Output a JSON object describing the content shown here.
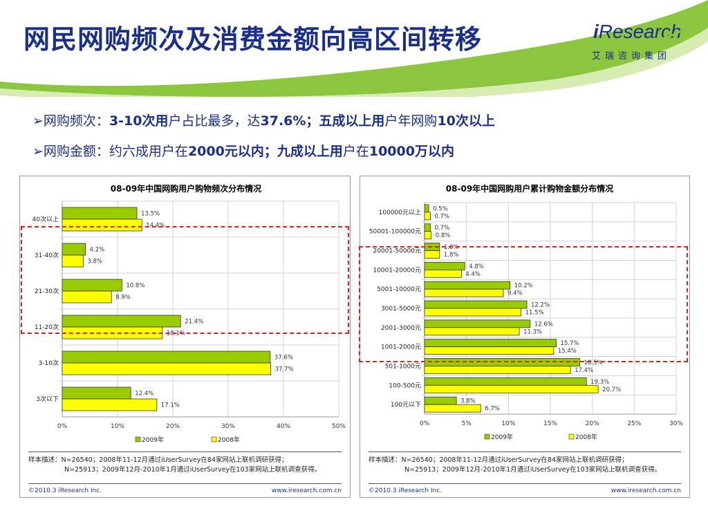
{
  "title": "网民网购频次及消费金额向高区间转移",
  "logo": {
    "brand_i": "i",
    "brand_rest": "Research",
    "cn": "艾瑞咨询集团"
  },
  "bullets": [
    {
      "a": "网购频次：",
      "b": "3-10次用",
      "c": "户占比最多，达",
      "d": "37.6%；五成以上用",
      "e": "户年网购",
      "f": "10次以上"
    },
    {
      "a": "网购金额：约六成用户在",
      "b": "2000元以内；九成以上用",
      "c": "户在",
      "d": "10000万以内"
    }
  ],
  "colors": {
    "series2009": "#99cc00",
    "series2008": "#ffff00",
    "title_blue": "#1a2f8c",
    "highlight": "#e02020"
  },
  "chart_data": [
    {
      "type": "bar",
      "orientation": "horizontal",
      "title": "08-09年中国网购用户购物频次分布情况",
      "categories": [
        "40次以上",
        "31-40次",
        "21-30次",
        "11-20次",
        "3-10次",
        "3次以下"
      ],
      "series": [
        {
          "name": "2009年",
          "values": [
            13.5,
            4.2,
            10.8,
            21.4,
            37.6,
            12.4
          ],
          "labels": [
            "13.5%",
            "4.2%",
            "10.8%",
            "21.4%",
            "37.6%",
            "12.4%"
          ]
        },
        {
          "name": "2008年",
          "values": [
            14.4,
            3.8,
            8.9,
            18.1,
            37.7,
            17.1
          ],
          "labels": [
            "14.4%",
            "3.8%",
            "8.9%",
            "18.1%",
            "37.7%",
            "17.1%"
          ]
        }
      ],
      "xlim": [
        0,
        50
      ],
      "ticks": [
        0,
        10,
        20,
        30,
        40,
        50
      ],
      "tick_labels": [
        "0%",
        "10%",
        "20%",
        "30%",
        "40%",
        "50%"
      ],
      "grid": true,
      "legend": "bottom",
      "note_lines": [
        "样本描述：N=26540；2008年11-12月通过iUserSurvey在84家网站上联机调研获得；",
        "N=25913；2009年12月-2010年1月通过iUserSurvey在103家网站上联机调查获得。"
      ],
      "copyright": "©2010.3 iResearch Inc.",
      "website": "www.iresearch.com.cn"
    },
    {
      "type": "bar",
      "orientation": "horizontal",
      "title": "08-09年中国网购用户累计购物金额分布情况",
      "categories": [
        "100000元以上",
        "50001-100000元",
        "20001-50000元",
        "10001-20000元",
        "5001-10000元",
        "3001-5000元",
        "2001-3000元",
        "1001-2000元",
        "501-1000元",
        "100-500元",
        "100元以下"
      ],
      "series": [
        {
          "name": "2009年",
          "values": [
            0.5,
            0.7,
            1.8,
            4.8,
            10.2,
            12.2,
            12.6,
            15.7,
            18.5,
            19.3,
            3.8
          ],
          "labels": [
            "0.5%",
            "0.7%",
            "1.8%",
            "4.8%",
            "10.2%",
            "12.2%",
            "12.6%",
            "15.7%",
            "18.5%",
            "19.3%",
            "3.8%"
          ]
        },
        {
          "name": "2008年",
          "values": [
            0.7,
            0.8,
            1.8,
            4.4,
            9.4,
            11.5,
            11.3,
            15.4,
            17.4,
            20.7,
            6.7
          ],
          "labels": [
            "0.7%",
            "0.8%",
            "1.8%",
            "4.4%",
            "9.4%",
            "11.5%",
            "11.3%",
            "15.4%",
            "17.4%",
            "20.7%",
            "6.7%"
          ]
        }
      ],
      "xlim": [
        0,
        30
      ],
      "ticks": [
        0,
        5,
        10,
        15,
        20,
        25,
        30
      ],
      "tick_labels": [
        "0%",
        "5%",
        "10%",
        "15%",
        "20%",
        "25%",
        "30%"
      ],
      "grid": true,
      "legend": "bottom",
      "note_lines": [
        "样本描述：N=26540；2008年11-12月通过iUserSurvey在84家网站上联机调研获得；",
        "N=25913；2009年12月-2010年1月通过iUserSurvey在103家网站上联机调查获得。"
      ],
      "copyright": "©2010.3 iResearch Inc.",
      "website": "www.iresearch.com.cn"
    }
  ]
}
